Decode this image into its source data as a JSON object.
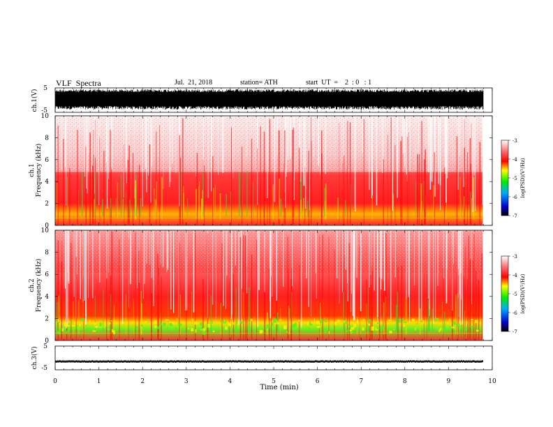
{
  "header": {
    "title": "VLF  Spectra",
    "date": "Jul.  21, 2018",
    "station": "station= ATH",
    "start": "start  UT  =    2  : 0   : 1"
  },
  "chart_data": [
    {
      "type": "line",
      "panel": "ch1-waveform",
      "ylabel": "ch.1(V)",
      "yticks": [
        "5",
        "-5"
      ],
      "ylim": [
        -5,
        5
      ],
      "xlim": [
        0,
        10
      ],
      "note_series": "dense noise waveform saturating between about -5 and 5 V over 0 to 9.8 min"
    },
    {
      "type": "heatmap",
      "panel": "ch1-spectrogram",
      "ylabel": "ch.1\nFrequency  (kHz)",
      "ylabel_line1": "ch.1",
      "ylabel_line2": "Frequency  (kHz)",
      "yticks": [
        "0",
        "2",
        "4",
        "6",
        "8",
        "10"
      ],
      "ylim": [
        0,
        10
      ],
      "xlim": [
        0,
        10
      ],
      "data_end_min": 9.8
    },
    {
      "type": "heatmap",
      "panel": "ch2-spectrogram",
      "ylabel_line1": "ch.2",
      "ylabel_line2": "Frequency  (kHz)",
      "yticks": [
        "0",
        "2",
        "4",
        "6",
        "8",
        "10"
      ],
      "ylim": [
        0,
        10
      ],
      "xlim": [
        0,
        10
      ],
      "data_end_min": 9.8
    },
    {
      "type": "line",
      "panel": "ch3-waveform",
      "ylabel": "ch.3(V)",
      "yticks": [
        "5",
        "-5"
      ],
      "ylim": [
        -5,
        5
      ],
      "xlim": [
        0,
        10
      ],
      "note_series": "near-flat trace at about -1.5 V"
    }
  ],
  "xaxis": {
    "label": "Time  (min)",
    "ticks": [
      "0",
      "1",
      "2",
      "3",
      "4",
      "5",
      "6",
      "7",
      "8",
      "9",
      "10"
    ]
  },
  "colorbar": {
    "label": "log(PSD)(V²/Hz)",
    "ticks": [
      "-3",
      "-4",
      "-5",
      "-6",
      "-7"
    ],
    "range": [
      -7,
      -3
    ],
    "colors": [
      "#000000",
      "#0000ff",
      "#00ff00",
      "#ffff00",
      "#ff0000",
      "#ffffff"
    ]
  }
}
